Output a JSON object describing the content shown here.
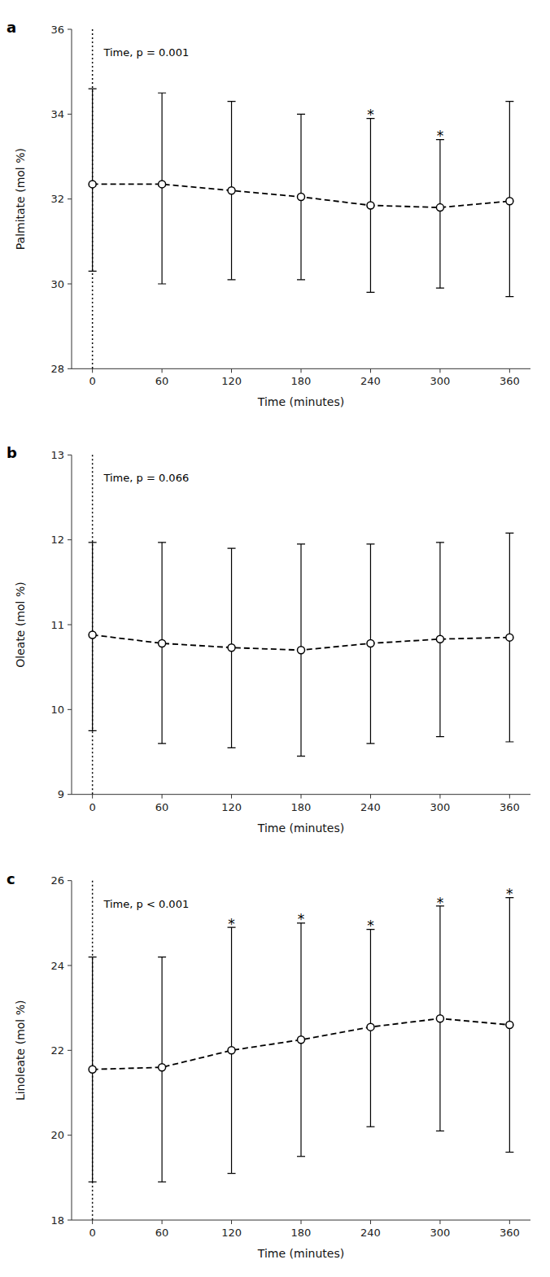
{
  "chart_data": [
    {
      "type": "line",
      "title": "a",
      "x_label": "Time (minutes)",
      "y_label": "Palmitate (mol %)",
      "x": [
        0,
        60,
        120,
        180,
        240,
        300,
        360
      ],
      "series": [
        {
          "values": [
            32.35,
            32.35,
            32.2,
            32.05,
            31.85,
            31.8,
            31.95
          ],
          "error_low": [
            30.3,
            30.0,
            30.1,
            30.1,
            29.8,
            29.9,
            29.7
          ],
          "error_high": [
            34.6,
            34.5,
            34.3,
            34.0,
            33.9,
            33.4,
            34.3
          ],
          "color": "#000000",
          "marker": "circle",
          "line_style": "dashed"
        }
      ],
      "xlim": [
        -18,
        378
      ],
      "xticks": [
        0,
        60,
        120,
        180,
        240,
        300,
        360
      ],
      "ylim": [
        28,
        36
      ],
      "yticks": [
        28,
        30,
        32,
        34,
        36
      ],
      "grid": false,
      "annotations": [
        {
          "text": "Time, p = 0.001"
        },
        {
          "x": 0,
          "line_style": "dotted"
        },
        {
          "text": "*",
          "x": 240,
          "y": 33.9
        },
        {
          "text": "*",
          "x": 300,
          "y": 33.4
        }
      ]
    },
    {
      "type": "line",
      "title": "b",
      "x_label": "Time (minutes)",
      "y_label": "Oleate (mol %)",
      "x": [
        0,
        60,
        120,
        180,
        240,
        300,
        360
      ],
      "series": [
        {
          "values": [
            10.88,
            10.78,
            10.73,
            10.7,
            10.78,
            10.83,
            10.85
          ],
          "error_low": [
            9.75,
            9.6,
            9.55,
            9.45,
            9.6,
            9.68,
            9.62
          ],
          "error_high": [
            11.97,
            11.97,
            11.9,
            11.95,
            11.95,
            11.97,
            12.08
          ],
          "color": "#000000",
          "marker": "circle",
          "line_style": "dashed"
        }
      ],
      "xlim": [
        -18,
        378
      ],
      "xticks": [
        0,
        60,
        120,
        180,
        240,
        300,
        360
      ],
      "ylim": [
        9,
        13
      ],
      "yticks": [
        9,
        10,
        11,
        12,
        13
      ],
      "grid": false,
      "annotations": [
        {
          "text": "Time, p = 0.066"
        },
        {
          "x": 0,
          "line_style": "dotted"
        }
      ]
    },
    {
      "type": "line",
      "title": "c",
      "x_label": "Time (minutes)",
      "y_label": "Linoleate (mol %)",
      "x": [
        0,
        60,
        120,
        180,
        240,
        300,
        360
      ],
      "series": [
        {
          "values": [
            21.55,
            21.6,
            22.0,
            22.25,
            22.55,
            22.75,
            22.6
          ],
          "error_low": [
            18.9,
            18.9,
            19.1,
            19.5,
            20.2,
            20.1,
            19.6
          ],
          "error_high": [
            24.2,
            24.2,
            24.9,
            25.0,
            24.85,
            25.4,
            25.6
          ],
          "color": "#000000",
          "marker": "circle",
          "line_style": "dashed"
        }
      ],
      "xlim": [
        -18,
        378
      ],
      "xticks": [
        0,
        60,
        120,
        180,
        240,
        300,
        360
      ],
      "ylim": [
        18,
        26
      ],
      "yticks": [
        18,
        20,
        22,
        24,
        26
      ],
      "grid": false,
      "annotations": [
        {
          "text": "Time, p < 0.001"
        },
        {
          "x": 0,
          "line_style": "dotted"
        },
        {
          "text": "*",
          "x": 120,
          "y": 24.9
        },
        {
          "text": "*",
          "x": 180,
          "y": 25.0
        },
        {
          "text": "*",
          "x": 240,
          "y": 24.85
        },
        {
          "text": "*",
          "x": 300,
          "y": 25.4
        },
        {
          "text": "*",
          "x": 360,
          "y": 25.6
        }
      ]
    }
  ]
}
